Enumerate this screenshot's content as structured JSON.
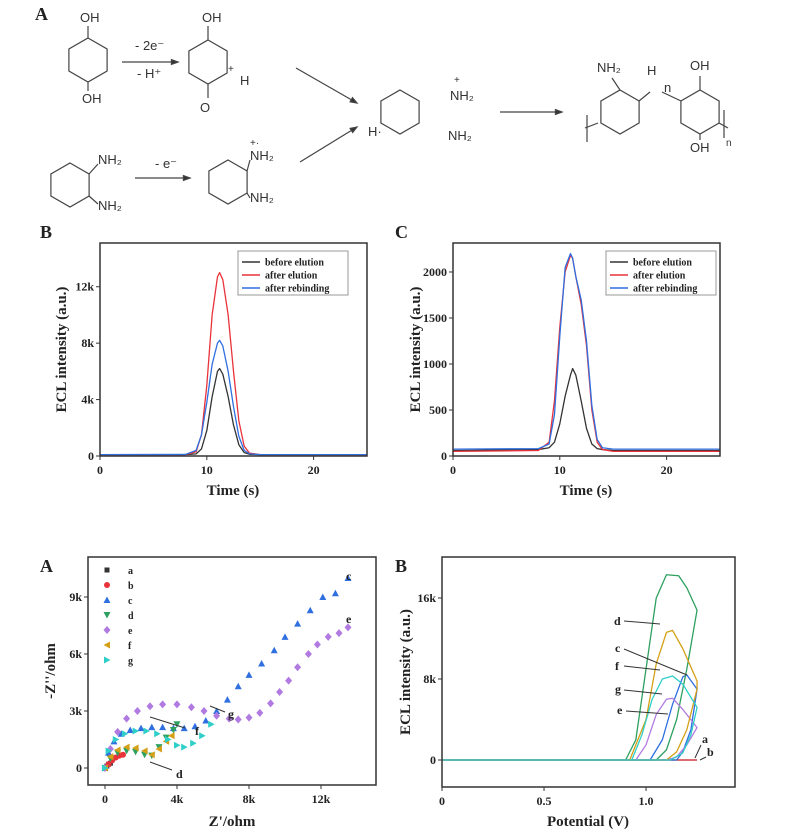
{
  "scheme": {
    "panel": "A",
    "oh": "OH",
    "o": "O",
    "h": "H",
    "nh2": "NH₂",
    "n": "n",
    "plus": "+",
    "radical_cation": "+·",
    "h_radical": "H·",
    "step1_top": "- 2e⁻",
    "step1_bottom": "- H⁺",
    "step2": "- e⁻"
  },
  "chart_data": [
    {
      "id": "top-B",
      "type": "line",
      "panel": "B",
      "xlabel": "Time (s)",
      "ylabel": "ECL intensity (a.u.)",
      "xlim": [
        0,
        25
      ],
      "ylim": [
        0,
        15100
      ],
      "xticks": [
        {
          "v": 0,
          "label": "0"
        },
        {
          "v": 10,
          "label": "10"
        },
        {
          "v": 20,
          "label": "20"
        }
      ],
      "yticks": [
        {
          "v": 0,
          "label": "0"
        },
        {
          "v": 4000,
          "label": "4k"
        },
        {
          "v": 8000,
          "label": "8k"
        },
        {
          "v": 12000,
          "label": "12k"
        }
      ],
      "legend_position": "top-right",
      "x": [
        0,
        8,
        9,
        9.5,
        10,
        10.5,
        11,
        11.2,
        11.5,
        12,
        12.5,
        13,
        13.5,
        14,
        15,
        25
      ],
      "series": [
        {
          "name": "before elution",
          "color": "#333333",
          "values": [
            100,
            100,
            150,
            500,
            1800,
            4200,
            6000,
            6200,
            5800,
            4200,
            2200,
            800,
            250,
            120,
            100,
            100
          ]
        },
        {
          "name": "after elution",
          "color": "#e8333a",
          "values": [
            100,
            100,
            300,
            1500,
            5000,
            10000,
            12700,
            13000,
            12500,
            10000,
            6000,
            2500,
            700,
            200,
            100,
            100
          ]
        },
        {
          "name": "after rebinding",
          "color": "#2f6fe0",
          "values": [
            100,
            110,
            400,
            1500,
            3800,
            6500,
            8000,
            8200,
            7800,
            6000,
            3500,
            1400,
            400,
            150,
            100,
            100
          ]
        }
      ]
    },
    {
      "id": "top-C",
      "type": "line",
      "panel": "C",
      "xlabel": "Time (s)",
      "ylabel": "ECL intensity (a.u.)",
      "xlim": [
        0,
        25
      ],
      "ylim": [
        0,
        2315
      ],
      "xticks": [
        {
          "v": 0,
          "label": "0"
        },
        {
          "v": 10,
          "label": "10"
        },
        {
          "v": 20,
          "label": "20"
        }
      ],
      "yticks": [
        {
          "v": 0,
          "label": "0"
        },
        {
          "v": 500,
          "label": "500"
        },
        {
          "v": 1000,
          "label": "1000"
        },
        {
          "v": 1500,
          "label": "1500"
        },
        {
          "v": 2000,
          "label": "2000"
        }
      ],
      "legend_position": "top-right",
      "x": [
        0,
        8,
        9,
        9.5,
        10,
        10.5,
        11,
        11.2,
        11.5,
        12,
        12.5,
        13,
        13.5,
        14,
        15,
        25
      ],
      "series": [
        {
          "name": "before elution",
          "color": "#333333",
          "values": [
            60,
            70,
            90,
            150,
            350,
            650,
            880,
            950,
            880,
            600,
            300,
            130,
            80,
            70,
            60,
            60
          ]
        },
        {
          "name": "after elution",
          "color": "#e8333a",
          "values": [
            50,
            60,
            150,
            600,
            1400,
            2000,
            2180,
            2150,
            1950,
            1650,
            1200,
            500,
            150,
            70,
            50,
            50
          ]
        },
        {
          "name": "after rebinding",
          "color": "#2f6fe0",
          "values": [
            75,
            80,
            130,
            450,
            1300,
            2050,
            2200,
            2150,
            1950,
            1700,
            1250,
            550,
            180,
            90,
            75,
            75
          ]
        }
      ]
    },
    {
      "id": "bottom-A",
      "type": "scatter",
      "panel": "A",
      "xlabel": "Z'/ohm",
      "ylabel": "-Z''/ohm",
      "xlim": [
        -944,
        15055
      ],
      "ylim": [
        -895,
        11105
      ],
      "xticks": [
        {
          "v": 0,
          "label": "0"
        },
        {
          "v": 4000,
          "label": "4k"
        },
        {
          "v": 8000,
          "label": "8k"
        },
        {
          "v": 12000,
          "label": "12k"
        }
      ],
      "yticks": [
        {
          "v": 0,
          "label": "0"
        },
        {
          "v": 3000,
          "label": "3k"
        },
        {
          "v": 6000,
          "label": "6k"
        },
        {
          "v": 9000,
          "label": "9k"
        }
      ],
      "legend_position": "top-left",
      "series": [
        {
          "name": "a",
          "color": "#333333",
          "marker": "square",
          "points": [
            [
              0,
              0
            ],
            [
              100,
              100
            ],
            [
              200,
              200
            ],
            [
              300,
              250
            ]
          ]
        },
        {
          "name": "b",
          "color": "#e8333a",
          "marker": "circle",
          "points": [
            [
              0,
              0
            ],
            [
              200,
              200
            ],
            [
              400,
              400
            ],
            [
              600,
              550
            ],
            [
              800,
              650
            ],
            [
              1000,
              700
            ]
          ]
        },
        {
          "name": "c",
          "color": "#2f6fe0",
          "marker": "triangle-up",
          "points": [
            [
              0,
              0
            ],
            [
              200,
              800
            ],
            [
              500,
              1400
            ],
            [
              900,
              1800
            ],
            [
              1400,
              2000
            ],
            [
              2000,
              2100
            ],
            [
              2600,
              2150
            ],
            [
              3200,
              2150
            ],
            [
              3800,
              2100
            ],
            [
              4400,
              2100
            ],
            [
              5000,
              2200
            ],
            [
              5600,
              2500
            ],
            [
              6200,
              3000
            ],
            [
              6800,
              3600
            ],
            [
              7400,
              4300
            ],
            [
              8000,
              4900
            ],
            [
              8700,
              5500
            ],
            [
              9400,
              6200
            ],
            [
              10000,
              6900
            ],
            [
              10700,
              7600
            ],
            [
              11400,
              8300
            ],
            [
              12100,
              9000
            ],
            [
              12800,
              9200
            ],
            [
              13500,
              10000
            ]
          ]
        },
        {
          "name": "d",
          "color": "#2ea060",
          "marker": "triangle-down",
          "points": [
            [
              0,
              0
            ],
            [
              300,
              500
            ],
            [
              700,
              800
            ],
            [
              1200,
              900
            ],
            [
              1700,
              850
            ],
            [
              2200,
              700
            ],
            [
              2600,
              650
            ],
            [
              3000,
              1100
            ],
            [
              3400,
              1600
            ],
            [
              3800,
              2000
            ],
            [
              4000,
              2300
            ]
          ]
        },
        {
          "name": "e",
          "color": "#b07ae0",
          "marker": "diamond",
          "points": [
            [
              0,
              0
            ],
            [
              300,
              1000
            ],
            [
              700,
              1900
            ],
            [
              1200,
              2600
            ],
            [
              1800,
              3000
            ],
            [
              2500,
              3250
            ],
            [
              3200,
              3350
            ],
            [
              4000,
              3350
            ],
            [
              4800,
              3200
            ],
            [
              5500,
              3000
            ],
            [
              6200,
              2750
            ],
            [
              6900,
              2600
            ],
            [
              7400,
              2550
            ],
            [
              8000,
              2650
            ],
            [
              8600,
              2900
            ],
            [
              9200,
              3400
            ],
            [
              9700,
              4000
            ],
            [
              10200,
              4600
            ],
            [
              10700,
              5300
            ],
            [
              11300,
              6000
            ],
            [
              11800,
              6500
            ],
            [
              12400,
              6900
            ],
            [
              13000,
              7100
            ],
            [
              13500,
              7400
            ]
          ]
        },
        {
          "name": "f",
          "color": "#d4a017",
          "marker": "triangle-left",
          "points": [
            [
              0,
              0
            ],
            [
              300,
              600
            ],
            [
              700,
              950
            ],
            [
              1200,
              1100
            ],
            [
              1700,
              1050
            ],
            [
              2200,
              900
            ],
            [
              2600,
              700
            ],
            [
              3000,
              1000
            ],
            [
              3400,
              1400
            ],
            [
              3700,
              1700
            ]
          ]
        },
        {
          "name": "g",
          "color": "#2ecfc8",
          "marker": "triangle-right",
          "points": [
            [
              0,
              0
            ],
            [
              200,
              900
            ],
            [
              600,
              1500
            ],
            [
              1100,
              1800
            ],
            [
              1700,
              1950
            ],
            [
              2300,
              1950
            ],
            [
              2900,
              1800
            ],
            [
              3500,
              1500
            ],
            [
              4000,
              1200
            ],
            [
              4400,
              1100
            ],
            [
              4900,
              1300
            ],
            [
              5400,
              1700
            ],
            [
              5900,
              2300
            ]
          ]
        }
      ],
      "annotations": [
        "c",
        "e",
        "g",
        "f",
        "d"
      ]
    },
    {
      "id": "bottom-B",
      "type": "line",
      "panel": "B",
      "xlabel": "Potential (V)",
      "ylabel": "ECL intensity (a.u.)",
      "xlim": [
        0,
        1.436
      ],
      "ylim": [
        -2667,
        20050
      ],
      "xticks": [
        {
          "v": 0,
          "label": "0"
        },
        {
          "v": 0.5,
          "label": "0.5"
        },
        {
          "v": 1.0,
          "label": "1.0"
        }
      ],
      "yticks": [
        {
          "v": 0,
          "label": "0"
        },
        {
          "v": 8000,
          "label": "8k"
        },
        {
          "v": 16000,
          "label": "16k"
        }
      ],
      "series": [
        {
          "name": "a",
          "color": "#333333",
          "points": [
            [
              0,
              0
            ],
            [
              1.25,
              0
            ]
          ]
        },
        {
          "name": "b",
          "color": "#e8333a",
          "points": [
            [
              0,
              0
            ],
            [
              1.25,
              0
            ]
          ]
        },
        {
          "name": "c",
          "color": "#2f6fe0",
          "points": [
            [
              0,
              0
            ],
            [
              1.02,
              0
            ],
            [
              1.08,
              2000
            ],
            [
              1.13,
              5500
            ],
            [
              1.18,
              8200
            ],
            [
              1.2,
              8400
            ],
            [
              1.25,
              7000
            ],
            [
              1.22,
              3000
            ],
            [
              1.18,
              800
            ],
            [
              1.15,
              0
            ],
            [
              0,
              0
            ]
          ]
        },
        {
          "name": "d",
          "color": "#2ea060",
          "points": [
            [
              0,
              0
            ],
            [
              0.9,
              0
            ],
            [
              0.95,
              2000
            ],
            [
              1.0,
              9000
            ],
            [
              1.05,
              16000
            ],
            [
              1.1,
              18300
            ],
            [
              1.16,
              18200
            ],
            [
              1.2,
              17000
            ],
            [
              1.25,
              14800
            ],
            [
              1.2,
              9000
            ],
            [
              1.15,
              4000
            ],
            [
              1.1,
              1000
            ],
            [
              1.05,
              0
            ],
            [
              0,
              0
            ]
          ]
        },
        {
          "name": "e",
          "color": "#b07ae0",
          "points": [
            [
              0,
              0
            ],
            [
              0.95,
              0
            ],
            [
              1.0,
              1500
            ],
            [
              1.05,
              4500
            ],
            [
              1.1,
              6000
            ],
            [
              1.13,
              6100
            ],
            [
              1.18,
              5000
            ],
            [
              1.25,
              3200
            ],
            [
              1.2,
              1500
            ],
            [
              1.15,
              300
            ],
            [
              1.1,
              0
            ],
            [
              0,
              0
            ]
          ]
        },
        {
          "name": "f",
          "color": "#d4a017",
          "points": [
            [
              0,
              0
            ],
            [
              0.92,
              0
            ],
            [
              1.0,
              4000
            ],
            [
              1.05,
              9500
            ],
            [
              1.1,
              12600
            ],
            [
              1.13,
              12800
            ],
            [
              1.18,
              11000
            ],
            [
              1.25,
              7800
            ],
            [
              1.25,
              7000
            ],
            [
              1.2,
              3000
            ],
            [
              1.15,
              800
            ],
            [
              1.1,
              0
            ],
            [
              0,
              0
            ]
          ]
        },
        {
          "name": "g",
          "color": "#2ecfc8",
          "points": [
            [
              0,
              0
            ],
            [
              0.93,
              0
            ],
            [
              0.98,
              2500
            ],
            [
              1.03,
              6000
            ],
            [
              1.08,
              8000
            ],
            [
              1.13,
              8300
            ],
            [
              1.18,
              7500
            ],
            [
              1.25,
              5200
            ],
            [
              1.22,
              2500
            ],
            [
              1.18,
              700
            ],
            [
              1.12,
              0
            ],
            [
              0,
              0
            ]
          ]
        }
      ],
      "annotations": [
        "d",
        "c",
        "f",
        "g",
        "e",
        "a",
        "b"
      ]
    }
  ]
}
